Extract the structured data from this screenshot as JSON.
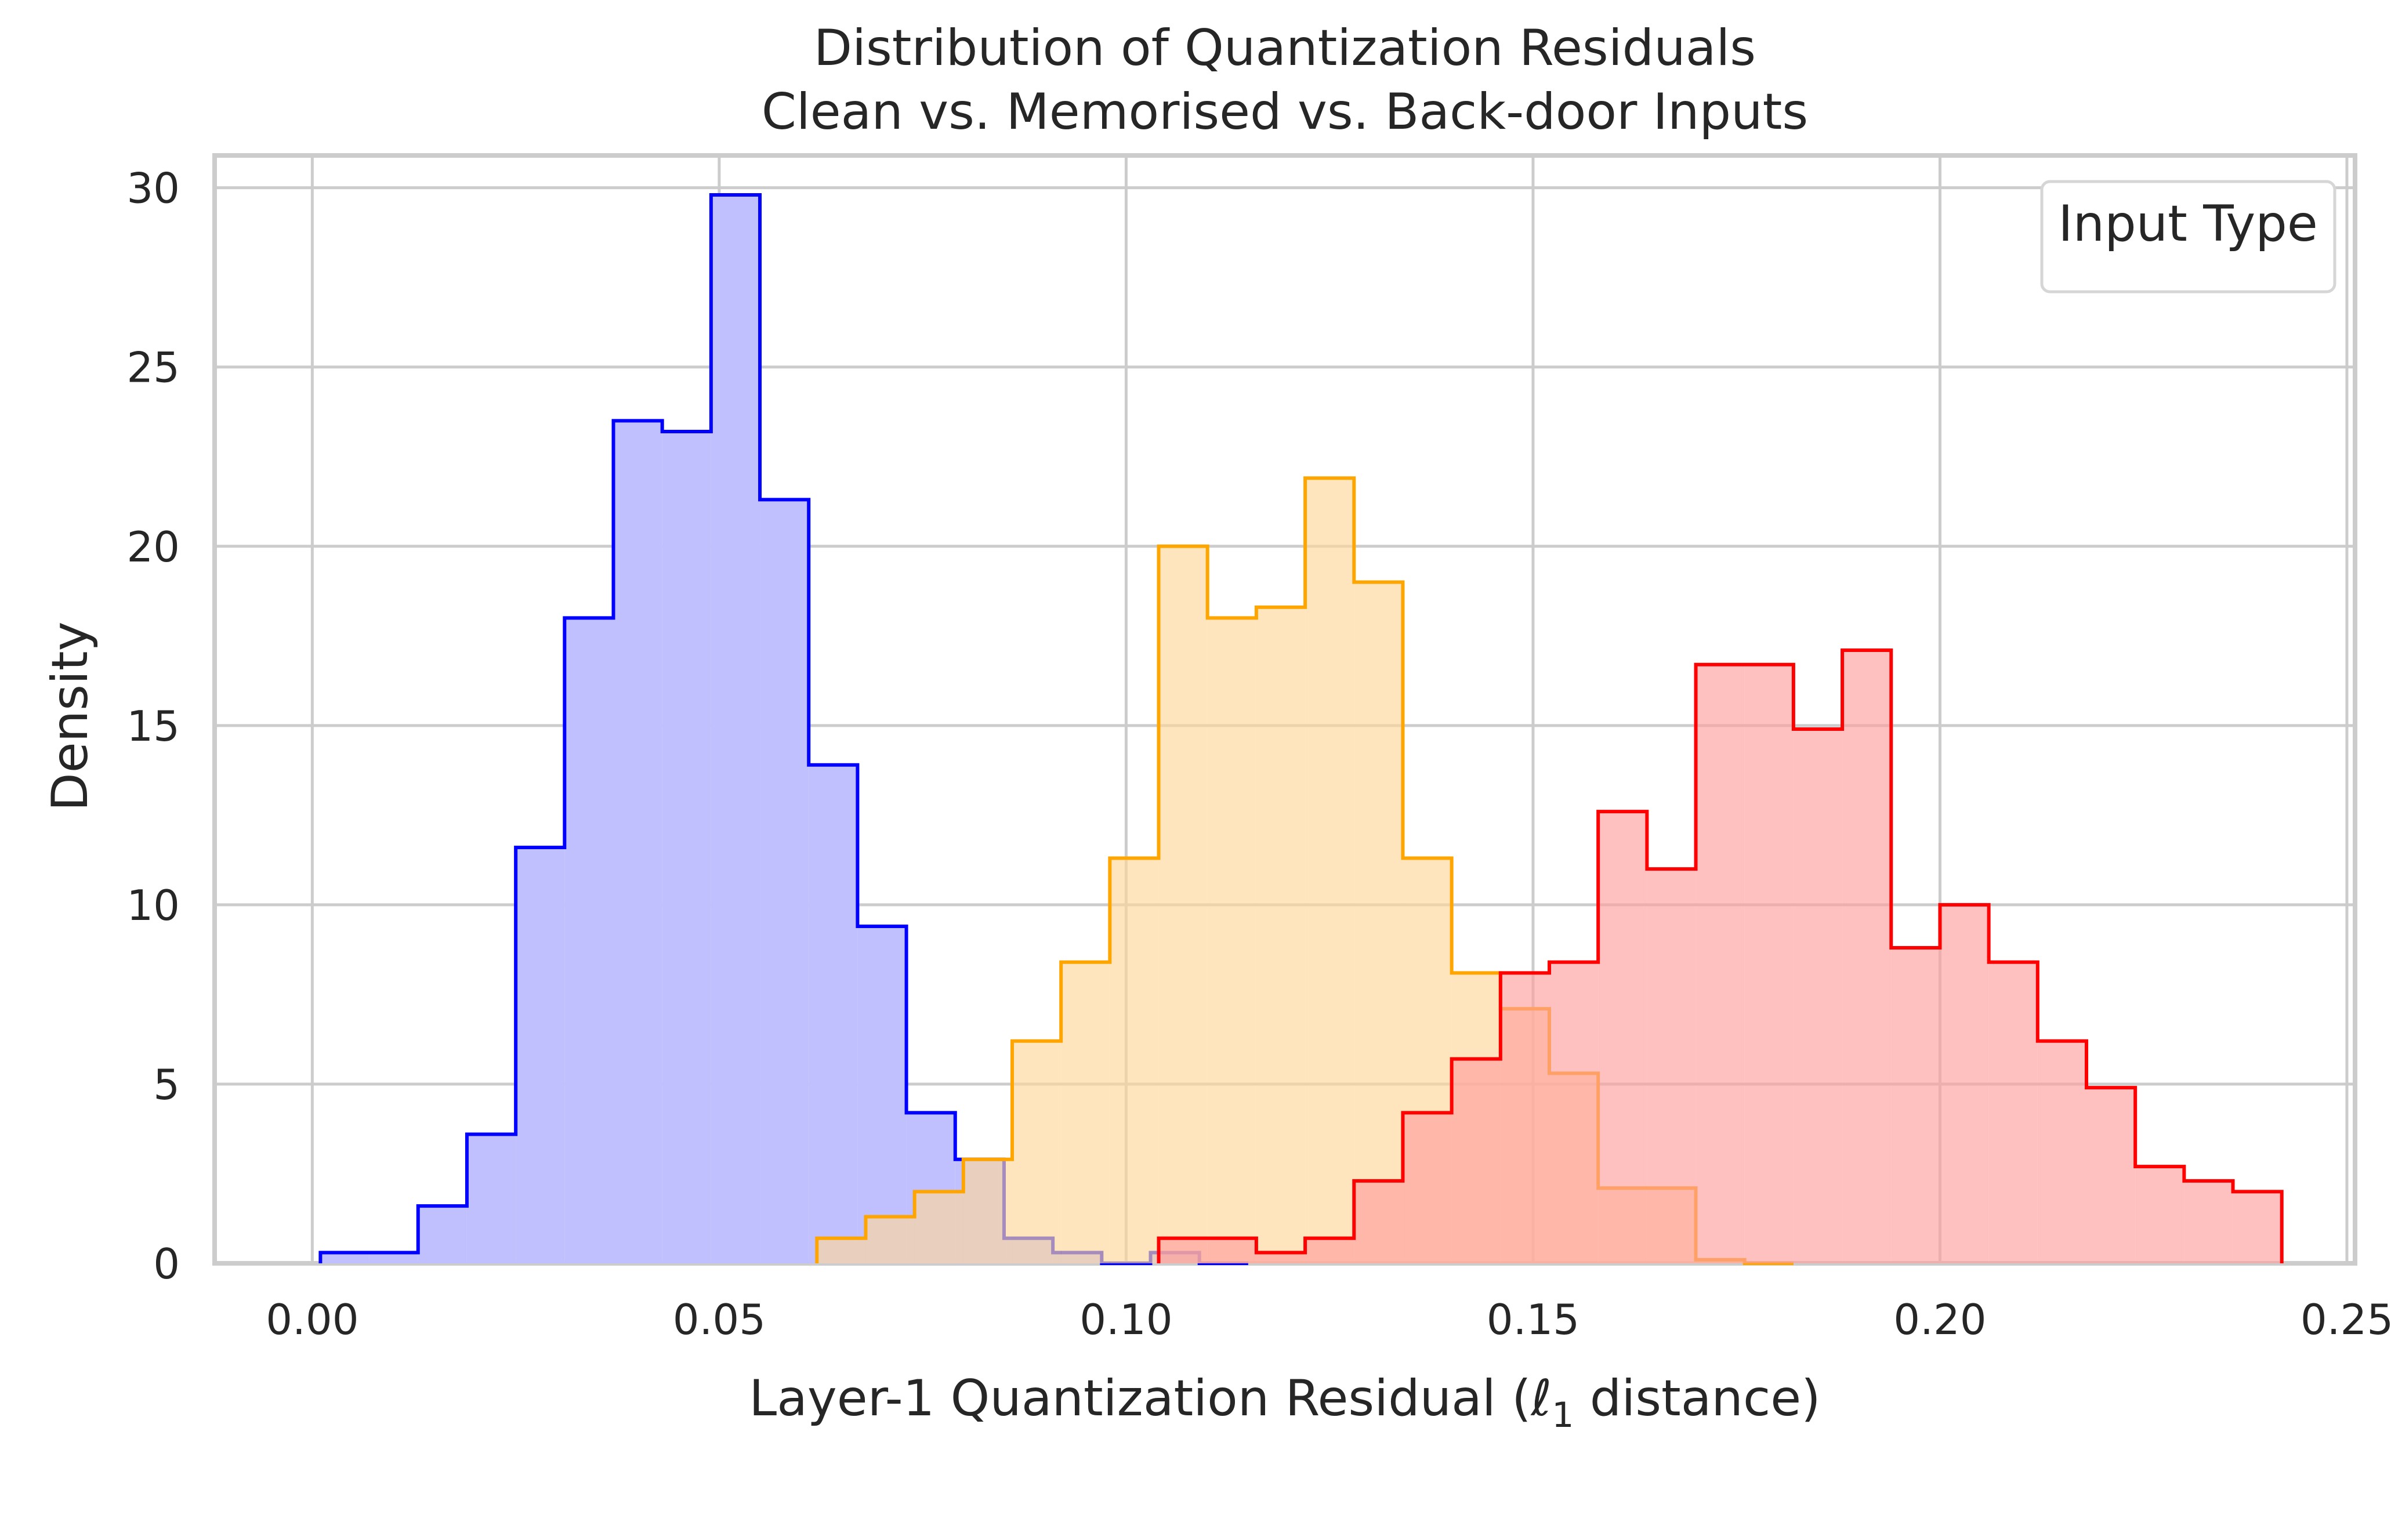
{
  "chart_data": {
    "type": "histogram",
    "title_lines": [
      "Distribution of Quantization Residuals",
      "Clean vs. Memorised vs. Back-door Inputs"
    ],
    "xlabel_prefix": "Layer-1 Quantization Residual (",
    "xlabel_symbol": "ℓ",
    "xlabel_subscript": "1",
    "xlabel_suffix": " distance)",
    "ylabel": "Density",
    "xlim": [
      -0.012,
      0.251
    ],
    "ylim": [
      0,
      30.9
    ],
    "x_ticks": [
      0.0,
      0.05,
      0.1,
      0.15,
      0.2,
      0.25
    ],
    "x_tick_labels": [
      "0.00",
      "0.05",
      "0.10",
      "0.15",
      "0.20",
      "0.25"
    ],
    "y_ticks": [
      0,
      5,
      10,
      15,
      20,
      25,
      30
    ],
    "y_tick_labels": [
      "0",
      "5",
      "10",
      "15",
      "20",
      "25",
      "30"
    ],
    "grid": true,
    "legend": {
      "title": "Input Type",
      "location": "upper right",
      "entries": []
    },
    "series": [
      {
        "color": "#0000ff",
        "fill": "#c0c0ff",
        "fill_opacity": 1.0,
        "bin_edges": [
          0.001,
          0.007,
          0.013,
          0.019,
          0.025,
          0.031,
          0.037,
          0.043,
          0.049,
          0.055,
          0.061,
          0.067,
          0.073,
          0.079,
          0.085,
          0.091,
          0.097,
          0.103,
          0.109,
          0.115
        ],
        "densities": [
          0.3,
          0.3,
          1.6,
          3.6,
          11.6,
          18.0,
          23.5,
          23.2,
          29.8,
          21.3,
          13.9,
          9.4,
          4.2,
          2.9,
          0.7,
          0.3,
          0.0,
          0.3,
          0.0
        ]
      },
      {
        "color": "#ffa500",
        "fill": "#ffd79a",
        "fill_opacity": 0.65,
        "bin_edges": [
          0.062,
          0.068,
          0.074,
          0.08,
          0.086,
          0.092,
          0.098,
          0.104,
          0.11,
          0.116,
          0.122,
          0.128,
          0.134,
          0.14,
          0.146,
          0.152,
          0.158,
          0.164,
          0.17,
          0.176,
          0.182
        ],
        "densities": [
          0.7,
          1.3,
          2.0,
          2.9,
          6.2,
          8.4,
          11.3,
          20.0,
          18.0,
          18.3,
          21.9,
          19.0,
          11.3,
          8.1,
          7.1,
          5.3,
          2.1,
          2.1,
          0.1,
          0.0
        ]
      },
      {
        "color": "#ff0000",
        "fill": "#ff9e9e",
        "fill_opacity": 0.65,
        "bin_edges": [
          0.104,
          0.11,
          0.116,
          0.122,
          0.128,
          0.134,
          0.14,
          0.146,
          0.152,
          0.158,
          0.164,
          0.17,
          0.176,
          0.182,
          0.188,
          0.194,
          0.2,
          0.206,
          0.212,
          0.218,
          0.224,
          0.23,
          0.236,
          0.242
        ],
        "densities": [
          0.7,
          0.7,
          0.3,
          0.7,
          2.3,
          4.2,
          5.7,
          8.1,
          8.4,
          12.6,
          11.0,
          16.7,
          16.7,
          14.9,
          17.1,
          8.8,
          10.0,
          8.4,
          6.2,
          4.9,
          2.7,
          2.3,
          2.0
        ]
      }
    ]
  }
}
